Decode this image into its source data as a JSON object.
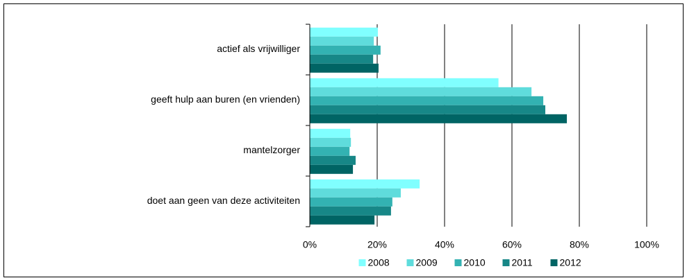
{
  "chart_data": {
    "type": "barh",
    "categories": [
      "actief als vrijwilliger",
      "geeft hulp aan buren (en vrienden)",
      "mantelzorger",
      "doet aan geen van deze activiteiten"
    ],
    "series": [
      {
        "name": "2008",
        "color": "#80ffff",
        "values": [
          20.2,
          56,
          12,
          32.6
        ]
      },
      {
        "name": "2009",
        "color": "#5fdcdc",
        "values": [
          19,
          65.8,
          12.2,
          27
        ]
      },
      {
        "name": "2010",
        "color": "#33b2b2",
        "values": [
          21,
          69.3,
          11.8,
          24.5
        ]
      },
      {
        "name": "2011",
        "color": "#178787",
        "values": [
          18.8,
          69.9,
          13.6,
          24.1
        ]
      },
      {
        "name": "2012",
        "color": "#006464",
        "values": [
          20.4,
          76.3,
          12.8,
          19.2
        ]
      }
    ],
    "xlim": [
      0,
      100
    ],
    "xticks": [
      {
        "value": 0,
        "label": "0%"
      },
      {
        "value": 20,
        "label": "20%"
      },
      {
        "value": 40,
        "label": "40%"
      },
      {
        "value": 60,
        "label": "60%"
      },
      {
        "value": 80,
        "label": "80%"
      },
      {
        "value": 100,
        "label": "100%"
      }
    ],
    "grid": true,
    "legend": "bottom"
  }
}
